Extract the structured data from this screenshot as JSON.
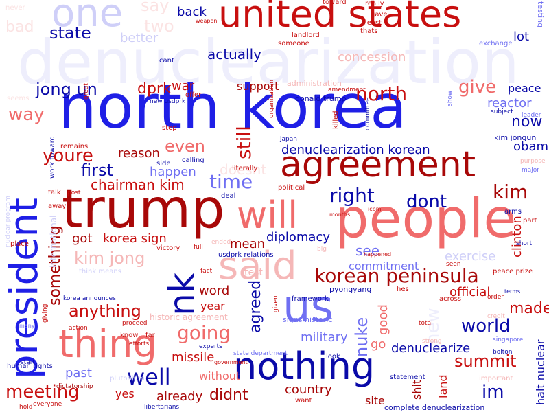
{
  "colors": {
    "background": "#ffffff",
    "blue_strong": "#1f1fe6",
    "blue_dark": "#0a0aa8",
    "blue_mid": "#6f6ff2",
    "blue_light": "#cfcff8",
    "blue_faint": "#eeeefc",
    "red_strong": "#c80f0f",
    "red_dark": "#a80808",
    "red_mid": "#f06b6b",
    "red_light": "#f5b7b7",
    "red_faint": "#fbe3e3"
  },
  "words": [
    "denuclearization",
    "north korea",
    "trump",
    "agreement",
    "people",
    "president",
    "united states",
    "nothing",
    "thing",
    "us",
    "said",
    "nk",
    "will",
    "one",
    "korean peninsula",
    "going",
    "well",
    "meeting",
    "kim jong",
    "jong un",
    "dprk",
    "youre",
    "first",
    "right",
    "kim",
    "time",
    "dont",
    "state",
    "actually",
    "say",
    "two",
    "back",
    "better",
    "concession",
    "lot",
    "bad",
    "never",
    "way",
    "war",
    "support",
    "give",
    "peace",
    "reactor",
    "now",
    "north",
    "chairman kim",
    "happen",
    "reason",
    "even",
    "still",
    "denuclearization korean",
    "obama",
    "something",
    "got",
    "korea sign",
    "diplomacy",
    "mean",
    "see",
    "commitment",
    "exercise",
    "clinton",
    "anything",
    "word",
    "year",
    "agreed",
    "nuke",
    "made",
    "official",
    "world",
    "summit",
    "denuclearize",
    "im",
    "halt nuclear",
    "missile",
    "without",
    "past",
    "yes",
    "already",
    "didnt",
    "country",
    "site",
    "land",
    "shit",
    "military",
    "good",
    "new",
    "doesnt",
    "go",
    "test",
    "administration",
    "donald trump",
    "kim jongun",
    "leader",
    "work toward",
    "nuclear program",
    "international",
    "korea announces",
    "historic agreement",
    "signs historic",
    "state department",
    "human rights",
    "dictatorship",
    "libertarians",
    "complete denuclearization",
    "plutonium",
    "usdprk relations",
    "pyongyang",
    "framework",
    "peace prize",
    "singapore",
    "bolton",
    "terms",
    "credit",
    "strong",
    "important",
    "testing",
    "exchange",
    "weapon",
    "toward",
    "really",
    "gave",
    "least",
    "thats",
    "landlord",
    "someone",
    "cant",
    "amendment",
    "offer",
    "new usdprk",
    "step",
    "remains",
    "side",
    "calling",
    "literally",
    "political",
    "victory",
    "full",
    "deal",
    "talk",
    "post",
    "away",
    "place",
    "seems",
    "great",
    "japan",
    "organization",
    "killed",
    "committee",
    "show",
    "subject",
    "major",
    "purpose",
    "part",
    "arms",
    "short",
    "seen",
    "order",
    "across",
    "total",
    "hes",
    "given",
    "look",
    "statement",
    "want",
    "giving",
    "many",
    "action",
    "proceed",
    "know",
    "far",
    "fact",
    "efforts",
    "experts",
    "government",
    "start",
    "everyone",
    "hold",
    "months",
    "icbm",
    "happened",
    "think means",
    "ended",
    "big"
  ]
}
